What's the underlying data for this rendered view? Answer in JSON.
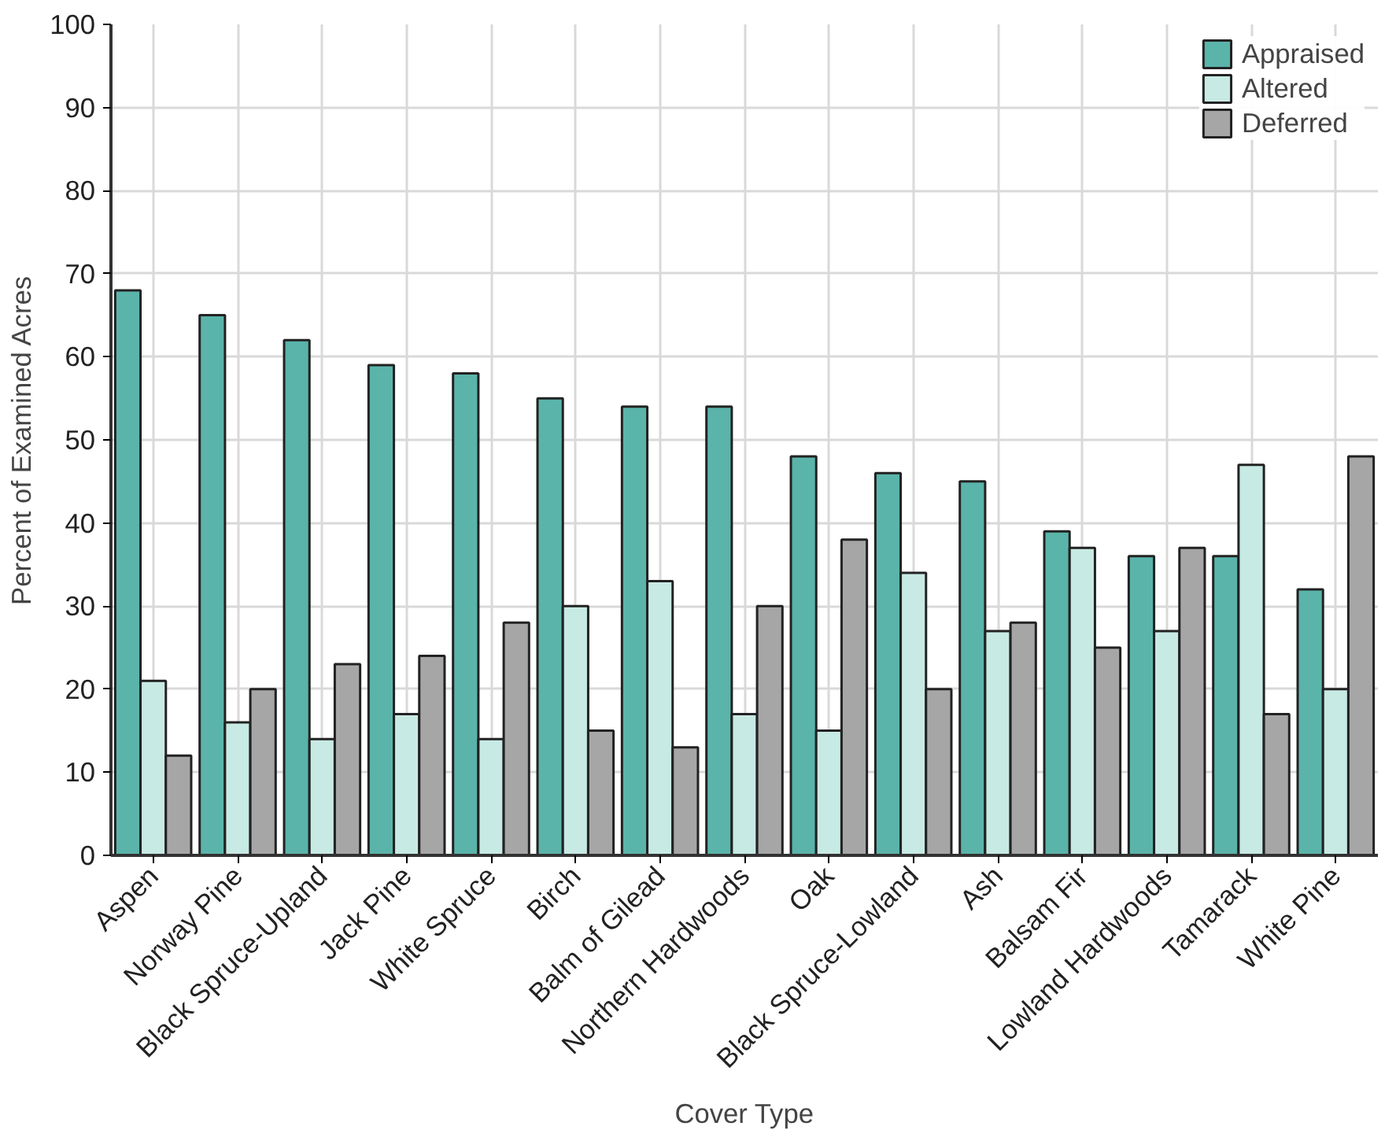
{
  "chart_data": {
    "type": "bar",
    "xlabel": "Cover Type",
    "ylabel": "Percent of Examined Acres",
    "categories": [
      "Aspen",
      "Norway Pine",
      "Black Spruce-Upland",
      "Jack Pine",
      "White Spruce",
      "Birch",
      "Balm of Gilead",
      "Northern Hardwoods",
      "Oak",
      "Black Spruce-Lowland",
      "Ash",
      "Balsam Fir",
      "Lowland Hardwoods",
      "Tamarack",
      "White Pine"
    ],
    "series": [
      {
        "name": "Appraised",
        "color": "#5ab4aa",
        "values": [
          68,
          65,
          62,
          59,
          58,
          55,
          54,
          54,
          48,
          46,
          45,
          39,
          36,
          36,
          32
        ]
      },
      {
        "name": "Altered",
        "color": "#c8eae4",
        "values": [
          21,
          16,
          14,
          17,
          14,
          30,
          33,
          17,
          15,
          34,
          27,
          37,
          27,
          47,
          20
        ]
      },
      {
        "name": "Deferred",
        "color": "#a6a6a6",
        "values": [
          12,
          20,
          23,
          24,
          28,
          15,
          13,
          30,
          38,
          20,
          28,
          25,
          37,
          17,
          48
        ]
      }
    ],
    "ylim": [
      0,
      100
    ],
    "yticks": [
      0,
      10,
      20,
      30,
      40,
      50,
      60,
      70,
      80,
      90,
      100
    ],
    "grid": true,
    "legend": "top right"
  }
}
